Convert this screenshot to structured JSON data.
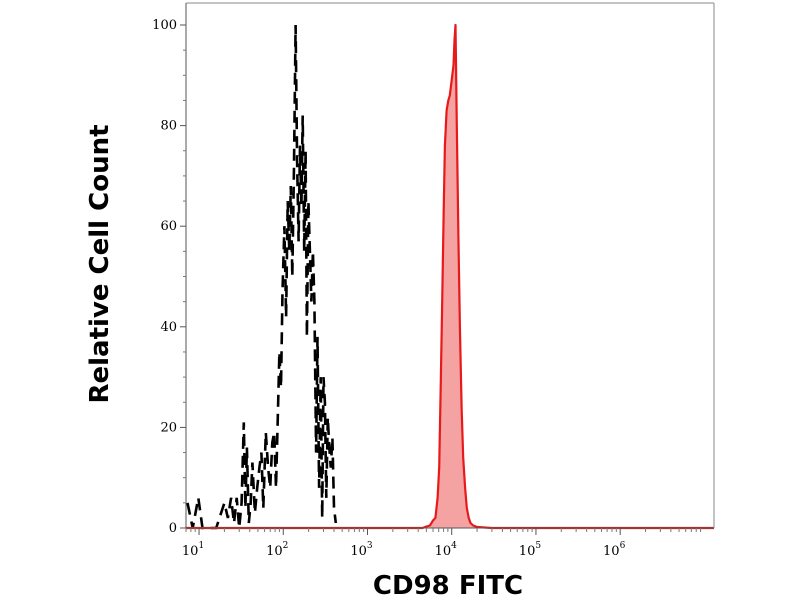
{
  "chart_data": {
    "type": "area",
    "xlabel": "CD98 FITC",
    "ylabel": "Relative Cell Count",
    "x_scale": "log",
    "xlim": [
      7,
      13000000
    ],
    "ylim": [
      0,
      100
    ],
    "grid": false,
    "legend": "none",
    "x_ticks": [
      {
        "base": "10",
        "exp": "1",
        "value": 10
      },
      {
        "base": "10",
        "exp": "2",
        "value": 100
      },
      {
        "base": "10",
        "exp": "3",
        "value": 1000
      },
      {
        "base": "10",
        "exp": "4",
        "value": 10000
      },
      {
        "base": "10",
        "exp": "5",
        "value": 100000
      },
      {
        "base": "10",
        "exp": "6",
        "value": 1000000
      }
    ],
    "y_ticks": [
      "0",
      "20",
      "40",
      "60",
      "80",
      "100"
    ],
    "series": [
      {
        "style": "dashed",
        "color": "#000000",
        "points": [
          [
            7.3,
            5
          ],
          [
            8.4,
            0
          ],
          [
            9.8,
            6
          ],
          [
            11,
            0
          ],
          [
            16,
            0
          ],
          [
            20,
            5
          ],
          [
            22,
            2
          ],
          [
            24,
            6
          ],
          [
            26,
            1
          ],
          [
            28,
            6
          ],
          [
            30,
            0
          ],
          [
            32,
            5
          ],
          [
            34,
            21
          ],
          [
            35.5,
            4
          ],
          [
            37,
            16
          ],
          [
            39,
            1
          ],
          [
            41,
            5
          ],
          [
            43,
            13
          ],
          [
            46,
            3
          ],
          [
            49,
            8
          ],
          [
            52,
            12
          ],
          [
            55,
            15
          ],
          [
            58,
            4
          ],
          [
            62,
            19
          ],
          [
            66,
            12
          ],
          [
            70,
            8
          ],
          [
            74,
            17
          ],
          [
            78,
            19
          ],
          [
            82,
            8
          ],
          [
            86,
            22
          ],
          [
            90,
            35
          ],
          [
            94,
            28
          ],
          [
            98,
            47
          ],
          [
            103,
            60
          ],
          [
            108,
            42
          ],
          [
            113,
            65
          ],
          [
            118,
            55
          ],
          [
            123,
            68
          ],
          [
            128,
            50
          ],
          [
            134,
            72
          ],
          [
            140,
            100
          ],
          [
            146,
            73
          ],
          [
            152,
            57
          ],
          [
            158,
            76
          ],
          [
            164,
            64
          ],
          [
            170,
            82
          ],
          [
            177,
            55
          ],
          [
            184,
            75
          ],
          [
            191,
            38
          ],
          [
            199,
            65
          ],
          [
            207,
            55
          ],
          [
            216,
            45
          ],
          [
            225,
            55
          ],
          [
            234,
            45
          ],
          [
            245,
            15
          ],
          [
            255,
            38
          ],
          [
            266,
            8
          ],
          [
            278,
            30
          ],
          [
            290,
            2
          ],
          [
            300,
            30
          ],
          [
            312,
            25
          ],
          [
            324,
            6
          ],
          [
            338,
            22
          ],
          [
            352,
            16
          ],
          [
            367,
            12
          ],
          [
            383,
            18
          ],
          [
            400,
            4
          ],
          [
            420,
            1
          ]
        ]
      },
      {
        "style": "filled",
        "color": "#e8191a",
        "fill": "#f4a2a2",
        "points": [
          [
            7,
            0
          ],
          [
            1000,
            0
          ],
          [
            4500,
            0
          ],
          [
            5000,
            0.3
          ],
          [
            5500,
            0.5
          ],
          [
            6000,
            1.5
          ],
          [
            6400,
            2
          ],
          [
            6800,
            6
          ],
          [
            7100,
            12
          ],
          [
            7400,
            28
          ],
          [
            7700,
            45
          ],
          [
            8000,
            62
          ],
          [
            8300,
            76
          ],
          [
            8700,
            83
          ],
          [
            9100,
            85
          ],
          [
            9500,
            86
          ],
          [
            10000,
            89
          ],
          [
            10500,
            92
          ],
          [
            10800,
            97
          ],
          [
            11100,
            100
          ],
          [
            11500,
            80
          ],
          [
            12000,
            58
          ],
          [
            12500,
            40
          ],
          [
            13100,
            24
          ],
          [
            13700,
            14
          ],
          [
            14400,
            8
          ],
          [
            15100,
            4
          ],
          [
            15900,
            2
          ],
          [
            16700,
            1
          ],
          [
            18000,
            0.5
          ],
          [
            20000,
            0.2
          ],
          [
            30000,
            0
          ],
          [
            13000000,
            0
          ]
        ]
      }
    ]
  }
}
